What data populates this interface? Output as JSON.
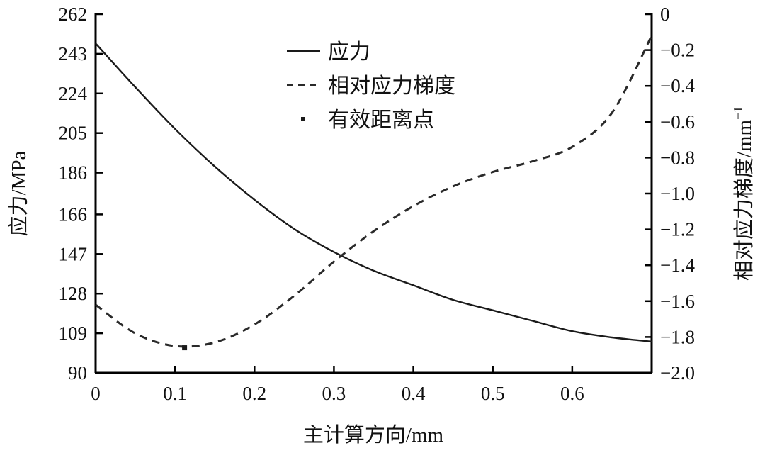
{
  "chart_data": {
    "type": "line",
    "title": "",
    "xlabel": "主计算方向/mm",
    "ylabel": "应力/MPa",
    "y2label": "相对应力梯度/mm",
    "y2label_superscript": "−1",
    "xlim": [
      0,
      0.7
    ],
    "ylim": [
      90,
      262
    ],
    "y2lim": [
      -2.0,
      0
    ],
    "x_ticks": [
      "0",
      "0.1",
      "0.2",
      "0.3",
      "0.4",
      "0.5",
      "0.6"
    ],
    "x_tick_values": [
      0,
      0.1,
      0.2,
      0.3,
      0.4,
      0.5,
      0.6
    ],
    "y_ticks": [
      "90",
      "109",
      "128",
      "147",
      "166",
      "186",
      "205",
      "224",
      "243",
      "262"
    ],
    "y_tick_values": [
      90,
      109,
      128,
      147,
      166,
      186,
      205,
      224,
      243,
      262
    ],
    "y2_ticks": [
      "−2.0",
      "−1.8",
      "−1.6",
      "−1.4",
      "−1.2",
      "−1.0",
      "−0.8",
      "−0.6",
      "−0.4",
      "−0.2",
      "0"
    ],
    "y2_tick_values": [
      -2.0,
      -1.8,
      -1.6,
      -1.4,
      -1.2,
      -1.0,
      -0.8,
      -0.6,
      -0.4,
      -0.2,
      0
    ],
    "grid": false,
    "legend_position": "upper center",
    "x": [
      0,
      0.05,
      0.1,
      0.15,
      0.2,
      0.25,
      0.3,
      0.35,
      0.4,
      0.45,
      0.5,
      0.55,
      0.6,
      0.65,
      0.7
    ],
    "series": [
      {
        "name": "应力",
        "axis": "left",
        "style": "solid",
        "values": [
          248,
          227,
          207,
          189,
          173,
          159,
          148,
          139,
          132,
          125,
          120,
          115,
          110,
          107,
          105
        ]
      },
      {
        "name": "相对应力梯度",
        "axis": "right",
        "style": "dashed",
        "values": [
          -1.62,
          -1.78,
          -1.85,
          -1.83,
          -1.73,
          -1.57,
          -1.38,
          -1.21,
          -1.07,
          -0.96,
          -0.88,
          -0.82,
          -0.74,
          -0.55,
          -0.12
        ]
      },
      {
        "name": "有效距离点",
        "axis": "right",
        "style": "marker",
        "points": [
          {
            "x": 0.112,
            "y": -1.86
          }
        ]
      }
    ],
    "legend": [
      "应力",
      "相对应力梯度",
      "有效距离点"
    ]
  },
  "colors": {
    "line": "#1a1a1a",
    "dashed": "#2a2a2a",
    "axis": "#000000",
    "background": "#ffffff"
  }
}
